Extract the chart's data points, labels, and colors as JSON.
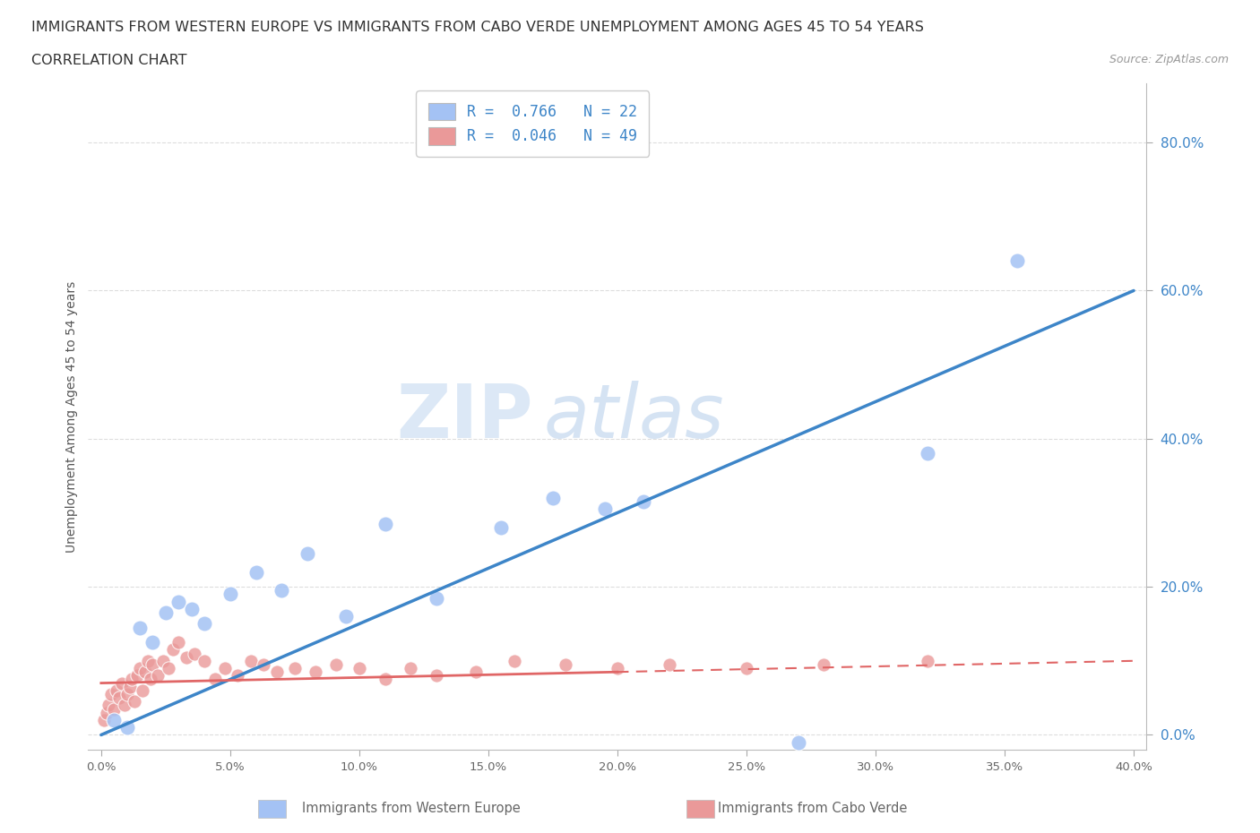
{
  "title_line1": "IMMIGRANTS FROM WESTERN EUROPE VS IMMIGRANTS FROM CABO VERDE UNEMPLOYMENT AMONG AGES 45 TO 54 YEARS",
  "title_line2": "CORRELATION CHART",
  "source": "Source: ZipAtlas.com",
  "xlabel": "Immigrants from Western Europe",
  "ylabel": "Unemployment Among Ages 45 to 54 years",
  "xlim": [
    -0.005,
    0.405
  ],
  "ylim": [
    -0.02,
    0.88
  ],
  "xticks": [
    0.0,
    0.05,
    0.1,
    0.15,
    0.2,
    0.25,
    0.3,
    0.35,
    0.4
  ],
  "yticks": [
    0.0,
    0.2,
    0.4,
    0.6,
    0.8
  ],
  "ytick_labels": [
    "0.0%",
    "20.0%",
    "40.0%",
    "60.0%",
    "80.0%"
  ],
  "xtick_labels": [
    "0.0%",
    "5.0%",
    "10.0%",
    "15.0%",
    "20.0%",
    "25.0%",
    "30.0%",
    "35.0%",
    "40.0%"
  ],
  "legend1_label": "R =  0.766   N = 22",
  "legend2_label": "R =  0.046   N = 49",
  "blue_color": "#A4C2F4",
  "pink_color": "#EA9999",
  "blue_line_color": "#3D85C8",
  "pink_line_color": "#E06666",
  "watermark_zip": "ZIP",
  "watermark_atlas": "atlas",
  "blue_scatter_x": [
    0.005,
    0.01,
    0.015,
    0.02,
    0.025,
    0.03,
    0.035,
    0.04,
    0.05,
    0.06,
    0.07,
    0.08,
    0.095,
    0.11,
    0.13,
    0.155,
    0.175,
    0.195,
    0.21,
    0.27,
    0.32,
    0.355
  ],
  "blue_scatter_y": [
    0.02,
    0.01,
    0.145,
    0.125,
    0.165,
    0.18,
    0.17,
    0.15,
    0.19,
    0.22,
    0.195,
    0.245,
    0.16,
    0.285,
    0.185,
    0.28,
    0.32,
    0.305,
    0.315,
    -0.01,
    0.38,
    0.64
  ],
  "pink_scatter_x": [
    0.001,
    0.002,
    0.003,
    0.004,
    0.005,
    0.006,
    0.007,
    0.008,
    0.009,
    0.01,
    0.011,
    0.012,
    0.013,
    0.014,
    0.015,
    0.016,
    0.017,
    0.018,
    0.019,
    0.02,
    0.022,
    0.024,
    0.026,
    0.028,
    0.03,
    0.033,
    0.036,
    0.04,
    0.044,
    0.048,
    0.053,
    0.058,
    0.063,
    0.068,
    0.075,
    0.083,
    0.091,
    0.1,
    0.11,
    0.12,
    0.13,
    0.145,
    0.16,
    0.18,
    0.2,
    0.22,
    0.25,
    0.28,
    0.32
  ],
  "pink_scatter_y": [
    0.02,
    0.03,
    0.04,
    0.055,
    0.035,
    0.06,
    0.05,
    0.07,
    0.04,
    0.055,
    0.065,
    0.075,
    0.045,
    0.08,
    0.09,
    0.06,
    0.085,
    0.1,
    0.075,
    0.095,
    0.08,
    0.1,
    0.09,
    0.115,
    0.125,
    0.105,
    0.11,
    0.1,
    0.075,
    0.09,
    0.08,
    0.1,
    0.095,
    0.085,
    0.09,
    0.085,
    0.095,
    0.09,
    0.075,
    0.09,
    0.08,
    0.085,
    0.1,
    0.095,
    0.09,
    0.095,
    0.09,
    0.095,
    0.1
  ],
  "blue_trend_x": [
    0.0,
    0.4
  ],
  "blue_trend_y": [
    0.0,
    0.6
  ],
  "pink_trend_x": [
    0.0,
    0.4
  ],
  "pink_trend_y": [
    0.07,
    0.1
  ],
  "bg_color": "#FFFFFF",
  "grid_color": "#CCCCCC"
}
